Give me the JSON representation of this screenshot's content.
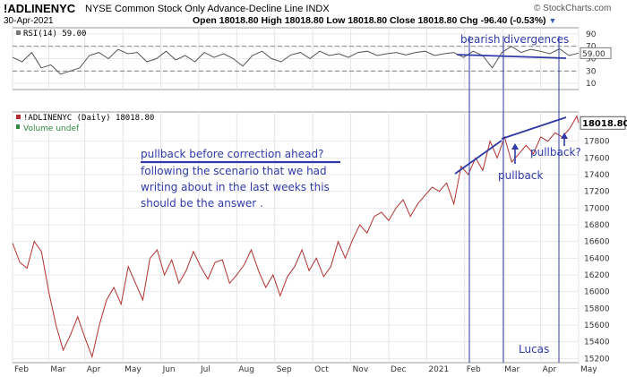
{
  "header": {
    "symbol": "!ADLINENYC",
    "description": "NYSE Common Stock Only Advance-Decline Line  INDX",
    "watermark": "© StockCharts.com",
    "date": "30-Apr-2021",
    "quote": "Open 18018.80  High 18018.80  Low 18018.80  Close 18018.80  Chg -96.40 (-0.53%)",
    "chg_icon": "down-triangle-icon"
  },
  "chart_data": [
    {
      "type": "line",
      "title": "RSI(14) 59.00",
      "legend": "RSI(14) 59.00",
      "ylim": [
        0,
        100
      ],
      "yticks": [
        10,
        30,
        50,
        70,
        90
      ],
      "reference_lines": [
        30,
        70
      ],
      "last_value_label": "59.00",
      "x": [
        0,
        8,
        16,
        24,
        32,
        40,
        48,
        56,
        64,
        72,
        80,
        88,
        96,
        104,
        112,
        120,
        128,
        136,
        144,
        152,
        160,
        168,
        176,
        184,
        192,
        200,
        208,
        216,
        224,
        232,
        240,
        248,
        256,
        264,
        272,
        280,
        288,
        296,
        304,
        312,
        320,
        328,
        336,
        344,
        352,
        360,
        368,
        376,
        384,
        392,
        400,
        408,
        416,
        424,
        432,
        440,
        448,
        456,
        464,
        472
      ],
      "values": [
        52,
        45,
        60,
        35,
        40,
        25,
        30,
        35,
        55,
        60,
        50,
        65,
        58,
        60,
        45,
        50,
        62,
        48,
        55,
        45,
        60,
        52,
        58,
        50,
        38,
        55,
        62,
        50,
        45,
        56,
        60,
        50,
        62,
        55,
        58,
        52,
        60,
        62,
        55,
        58,
        60,
        56,
        60,
        62,
        55,
        58,
        60,
        52,
        62,
        55,
        35,
        60,
        70,
        60,
        65,
        62,
        58,
        66,
        55,
        59
      ],
      "color": "#555555"
    },
    {
      "type": "line",
      "title": "!ADLINENYC (Daily) 18018.80",
      "legend": "!ADLINENYC (Daily) 18018.80",
      "legend2": "Volume undef",
      "xlabels": [
        "Feb",
        "Mar",
        "Apr",
        "May",
        "Jun",
        "Jul",
        "Aug",
        "Sep",
        "Oct",
        "Nov",
        "Dec",
        "2021",
        "Feb",
        "Mar",
        "Apr",
        "May"
      ],
      "xlabel_pos": [
        0,
        20,
        40,
        61,
        82,
        103,
        124,
        145,
        166,
        187,
        208,
        229,
        250,
        271,
        292,
        313
      ],
      "ylim": [
        15150,
        18150
      ],
      "yticks": [
        15200,
        15400,
        15600,
        15800,
        16000,
        16200,
        16400,
        16600,
        16800,
        17000,
        17200,
        17400,
        17600,
        17800
      ],
      "last_value_label": "18018.80",
      "x": [
        0,
        4,
        8,
        12,
        16,
        20,
        24,
        28,
        32,
        36,
        40,
        44,
        48,
        52,
        56,
        60,
        64,
        68,
        72,
        76,
        80,
        84,
        88,
        92,
        96,
        100,
        104,
        108,
        112,
        116,
        120,
        124,
        128,
        132,
        136,
        140,
        144,
        148,
        152,
        156,
        160,
        164,
        168,
        172,
        176,
        180,
        184,
        188,
        192,
        196,
        200,
        204,
        208,
        212,
        216,
        220,
        224,
        228,
        232,
        236,
        240,
        244,
        248,
        252,
        256,
        260,
        264,
        268,
        272,
        276,
        280,
        284,
        288,
        292,
        296,
        300,
        304,
        308,
        312,
        313
      ],
      "values": [
        16580,
        16350,
        16280,
        16600,
        16480,
        16000,
        15600,
        15300,
        15480,
        15700,
        15450,
        15220,
        15600,
        15900,
        16050,
        15850,
        16300,
        16100,
        15900,
        16400,
        16500,
        16200,
        16380,
        16100,
        16250,
        16480,
        16300,
        16150,
        16350,
        16380,
        16100,
        16200,
        16320,
        16500,
        16250,
        16050,
        16200,
        15950,
        16180,
        16300,
        16500,
        16250,
        16400,
        16180,
        16300,
        16600,
        16400,
        16620,
        16800,
        16700,
        16900,
        16950,
        16850,
        17000,
        17100,
        16900,
        17050,
        17150,
        17250,
        17200,
        17300,
        17050,
        17500,
        17400,
        17600,
        17450,
        17800,
        17600,
        17850,
        17550,
        17650,
        17750,
        17650,
        17850,
        17800,
        17900,
        17850,
        17950,
        18100,
        18018.8
      ],
      "color": "#b03030"
    }
  ],
  "annotations": {
    "bearish": "bearish divergences",
    "question": "pullback before correction ahead?",
    "line1": "following the scenario that we had",
    "line2": "writing about in the last weeks this",
    "line3": "should be the answer .",
    "pullback": "pullback",
    "pullback2": "pullback?",
    "author": "Lucas"
  }
}
